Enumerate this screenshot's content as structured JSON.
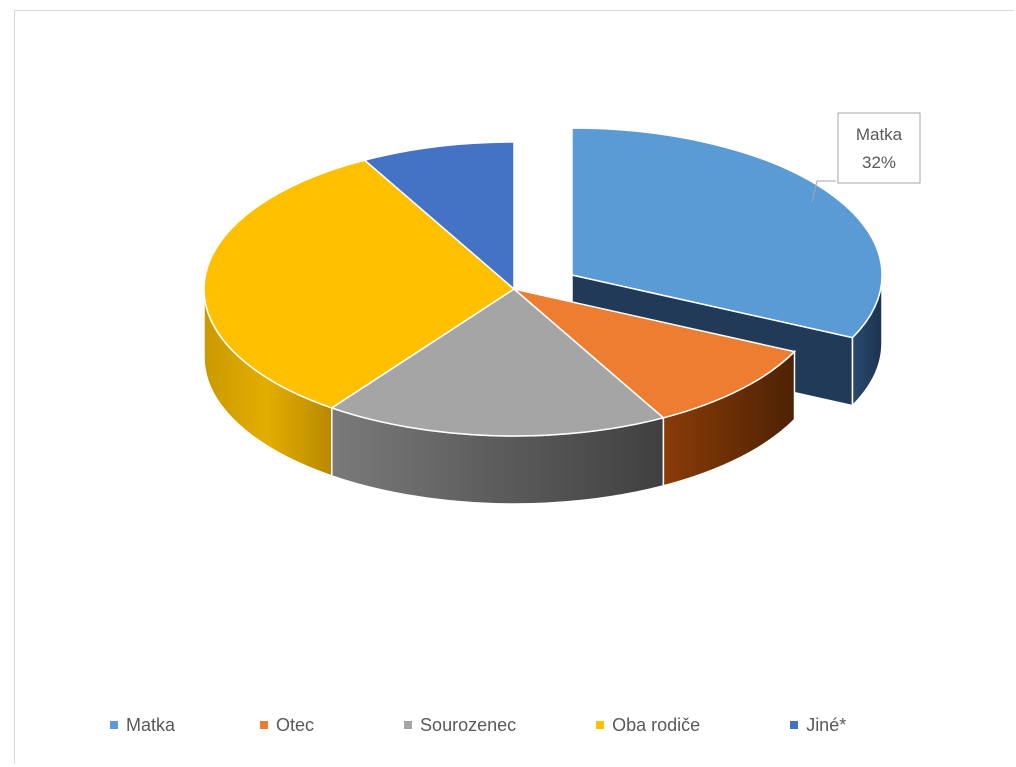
{
  "chart_data": {
    "type": "pie",
    "style": "3d-exploded",
    "title": "",
    "legend_position": "bottom",
    "categories": [
      "Matka",
      "Otec",
      "Sourozenec",
      "Oba rodiče",
      "Jiné*"
    ],
    "values": [
      32,
      10,
      18,
      32,
      8
    ],
    "unit": "%",
    "colors": [
      "#5B9BD5",
      "#ED7D31",
      "#A5A5A5",
      "#FFC000",
      "#4472C4"
    ],
    "exploded": [
      "Matka"
    ],
    "data_labels": [
      {
        "category": "Matka",
        "line1": "Matka",
        "line2": "32%"
      }
    ]
  }
}
